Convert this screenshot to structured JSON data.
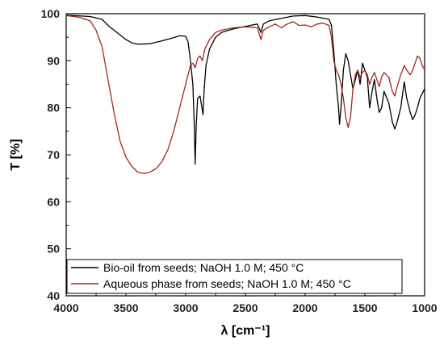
{
  "chart_data": {
    "type": "line",
    "title": "",
    "xlabel": "λ [cm⁻¹]",
    "ylabel": "T [%]",
    "xlim": [
      4000,
      1000
    ],
    "ylim": [
      40,
      100
    ],
    "x_ticks": [
      4000,
      3500,
      3000,
      2500,
      2000,
      1500,
      1000
    ],
    "y_ticks": [
      40,
      50,
      60,
      70,
      80,
      90,
      100
    ],
    "grid": false,
    "legend_position": "bottom-right",
    "series": [
      {
        "name": "Bio-oil from seeds; NaOH 1.0 M; 450 °C",
        "color": "#000000",
        "points": [
          [
            4000,
            99.7
          ],
          [
            3800,
            99.4
          ],
          [
            3700,
            98.8
          ],
          [
            3650,
            97.5
          ],
          [
            3600,
            96.5
          ],
          [
            3550,
            95.5
          ],
          [
            3500,
            94.5
          ],
          [
            3450,
            93.8
          ],
          [
            3400,
            93.5
          ],
          [
            3300,
            93.6
          ],
          [
            3200,
            94.2
          ],
          [
            3100,
            94.9
          ],
          [
            3050,
            95.3
          ],
          [
            3000,
            95.2
          ],
          [
            2980,
            94.0
          ],
          [
            2960,
            90.0
          ],
          [
            2940,
            85.0
          ],
          [
            2928,
            76.0
          ],
          [
            2920,
            68.0
          ],
          [
            2912,
            76.0
          ],
          [
            2900,
            82.0
          ],
          [
            2880,
            82.5
          ],
          [
            2870,
            81.0
          ],
          [
            2855,
            78.5
          ],
          [
            2845,
            84.0
          ],
          [
            2830,
            89.0
          ],
          [
            2800,
            92.5
          ],
          [
            2750,
            95.0
          ],
          [
            2700,
            96.0
          ],
          [
            2600,
            96.8
          ],
          [
            2500,
            97.3
          ],
          [
            2400,
            97.8
          ],
          [
            2370,
            96.0
          ],
          [
            2350,
            97.8
          ],
          [
            2300,
            98.5
          ],
          [
            2200,
            99.0
          ],
          [
            2100,
            99.5
          ],
          [
            2000,
            99.6
          ],
          [
            1900,
            99.3
          ],
          [
            1800,
            98.8
          ],
          [
            1780,
            97.5
          ],
          [
            1760,
            92.0
          ],
          [
            1740,
            85.0
          ],
          [
            1720,
            80.0
          ],
          [
            1712,
            76.5
          ],
          [
            1700,
            80.0
          ],
          [
            1680,
            88.0
          ],
          [
            1660,
            91.5
          ],
          [
            1640,
            90.0
          ],
          [
            1620,
            87.0
          ],
          [
            1600,
            84.0
          ],
          [
            1580,
            86.0
          ],
          [
            1560,
            88.0
          ],
          [
            1540,
            85.0
          ],
          [
            1520,
            89.5
          ],
          [
            1500,
            88.0
          ],
          [
            1480,
            86.5
          ],
          [
            1460,
            80.0
          ],
          [
            1440,
            83.5
          ],
          [
            1420,
            86.0
          ],
          [
            1400,
            82.0
          ],
          [
            1380,
            79.0
          ],
          [
            1360,
            80.0
          ],
          [
            1340,
            83.5
          ],
          [
            1300,
            81.0
          ],
          [
            1270,
            77.0
          ],
          [
            1250,
            75.5
          ],
          [
            1230,
            77.0
          ],
          [
            1200,
            80.0
          ],
          [
            1170,
            85.5
          ],
          [
            1150,
            82.0
          ],
          [
            1120,
            79.0
          ],
          [
            1100,
            77.5
          ],
          [
            1080,
            78.5
          ],
          [
            1060,
            80.0
          ],
          [
            1040,
            82.0
          ],
          [
            1020,
            83.0
          ],
          [
            1000,
            84.0
          ]
        ]
      },
      {
        "name": "Aqueous phase from seeds; NaOH 1.0 M; 450 °C",
        "color": "#a0281e",
        "points": [
          [
            4000,
            99.6
          ],
          [
            3900,
            99.3
          ],
          [
            3800,
            98.5
          ],
          [
            3750,
            96.5
          ],
          [
            3700,
            93.0
          ],
          [
            3650,
            86.0
          ],
          [
            3600,
            79.0
          ],
          [
            3550,
            73.0
          ],
          [
            3500,
            69.5
          ],
          [
            3450,
            67.5
          ],
          [
            3400,
            66.3
          ],
          [
            3350,
            66.0
          ],
          [
            3300,
            66.3
          ],
          [
            3250,
            67.0
          ],
          [
            3200,
            68.5
          ],
          [
            3150,
            71.0
          ],
          [
            3100,
            75.0
          ],
          [
            3050,
            80.0
          ],
          [
            3000,
            85.0
          ],
          [
            2980,
            87.0
          ],
          [
            2960,
            89.0
          ],
          [
            2940,
            89.5
          ],
          [
            2920,
            88.5
          ],
          [
            2900,
            90.5
          ],
          [
            2880,
            91.0
          ],
          [
            2860,
            90.0
          ],
          [
            2840,
            92.5
          ],
          [
            2800,
            94.5
          ],
          [
            2750,
            96.0
          ],
          [
            2700,
            96.5
          ],
          [
            2600,
            97.0
          ],
          [
            2500,
            97.2
          ],
          [
            2400,
            97.0
          ],
          [
            2370,
            94.5
          ],
          [
            2350,
            96.5
          ],
          [
            2300,
            97.2
          ],
          [
            2250,
            97.8
          ],
          [
            2200,
            97.0
          ],
          [
            2150,
            97.8
          ],
          [
            2100,
            98.3
          ],
          [
            2050,
            97.5
          ],
          [
            2000,
            97.6
          ],
          [
            1950,
            97.2
          ],
          [
            1900,
            97.8
          ],
          [
            1850,
            98.0
          ],
          [
            1800,
            97.5
          ],
          [
            1780,
            95.0
          ],
          [
            1760,
            90.0
          ],
          [
            1740,
            88.0
          ],
          [
            1720,
            87.0
          ],
          [
            1700,
            85.0
          ],
          [
            1680,
            82.0
          ],
          [
            1660,
            78.0
          ],
          [
            1640,
            75.8
          ],
          [
            1620,
            78.0
          ],
          [
            1600,
            84.0
          ],
          [
            1580,
            87.0
          ],
          [
            1560,
            88.0
          ],
          [
            1540,
            86.5
          ],
          [
            1520,
            87.5
          ],
          [
            1500,
            88.0
          ],
          [
            1480,
            87.0
          ],
          [
            1460,
            85.0
          ],
          [
            1440,
            86.5
          ],
          [
            1420,
            87.5
          ],
          [
            1400,
            86.0
          ],
          [
            1380,
            84.5
          ],
          [
            1360,
            86.5
          ],
          [
            1340,
            87.5
          ],
          [
            1300,
            86.5
          ],
          [
            1270,
            83.5
          ],
          [
            1250,
            82.5
          ],
          [
            1230,
            84.5
          ],
          [
            1200,
            87.0
          ],
          [
            1170,
            89.0
          ],
          [
            1150,
            88.0
          ],
          [
            1120,
            87.0
          ],
          [
            1100,
            88.0
          ],
          [
            1080,
            89.5
          ],
          [
            1060,
            91.0
          ],
          [
            1040,
            90.5
          ],
          [
            1020,
            89.0
          ],
          [
            1000,
            88.0
          ]
        ]
      }
    ]
  }
}
